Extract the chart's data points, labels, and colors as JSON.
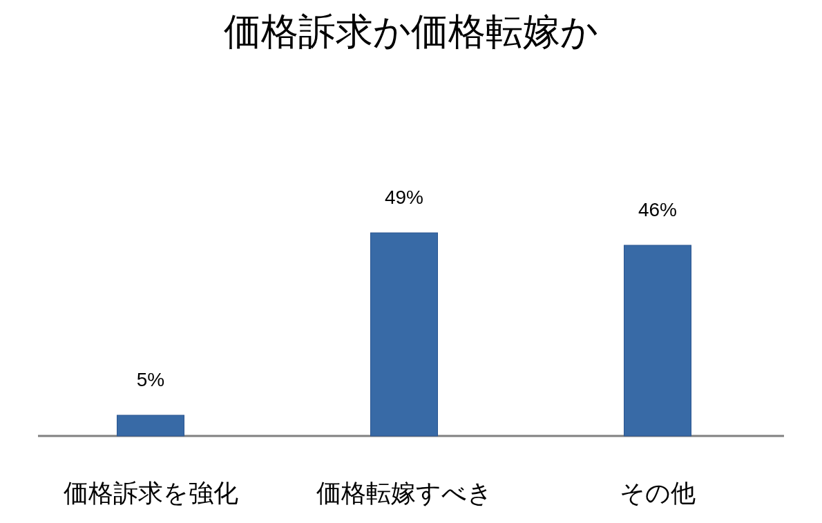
{
  "chart_data": {
    "type": "bar",
    "title": "価格訴求か価格転嫁か",
    "categories": [
      "価格訴求を強化",
      "価格転嫁すべき",
      "その他"
    ],
    "values": [
      5,
      49,
      46
    ],
    "value_labels": [
      "5%",
      "49%",
      "46%"
    ],
    "color": "#386aa6"
  }
}
